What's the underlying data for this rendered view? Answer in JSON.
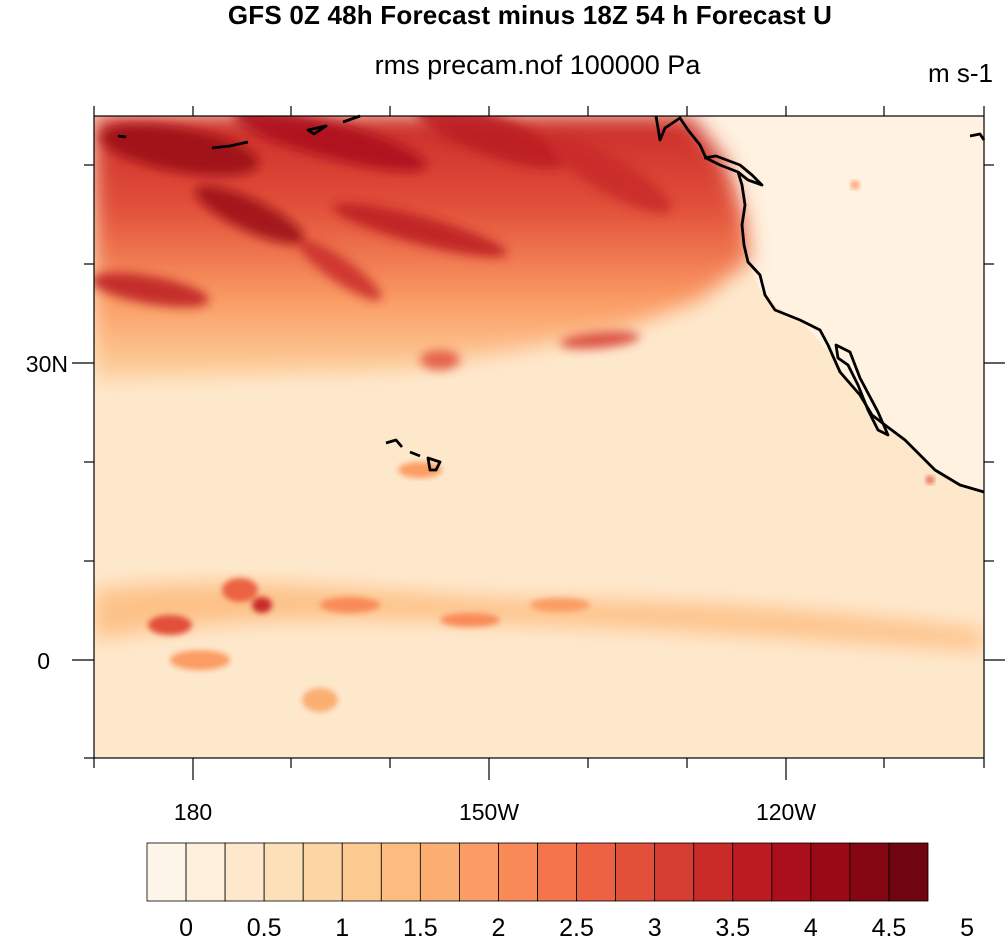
{
  "title": "GFS 0Z 48h Forecast minus 18Z 54 h Forecast U",
  "subtitle": "rms precam.nof 100000 Pa",
  "units": "m s-1",
  "lat_ticks": [
    "30N",
    "0"
  ],
  "lon_ticks": [
    "180",
    "150W",
    "120W"
  ],
  "colorbar": {
    "labels": [
      "0",
      "0.5",
      "1",
      "1.5",
      "2",
      "2.5",
      "3",
      "3.5",
      "4",
      "4.5",
      "5"
    ],
    "colors": [
      "#fff6ea",
      "#fef0dc",
      "#fee8cc",
      "#fee0b8",
      "#fdd5a2",
      "#fdca90",
      "#fdbd80",
      "#fcae72",
      "#fb9c64",
      "#f98a58",
      "#f4754c",
      "#ec6243",
      "#e2503a",
      "#d63e32",
      "#c92b29",
      "#bb1b21",
      "#ab0f1b",
      "#990916",
      "#830612",
      "#6f0510"
    ]
  },
  "chart_data": {
    "type": "heatmap",
    "title": "GFS 0Z 48h Forecast minus 18Z 54 h Forecast U",
    "subtitle": "rms precam.nof 100000 Pa",
    "units": "m s-1",
    "region": {
      "lon_range": [
        "170E",
        "100W"
      ],
      "lat_range": [
        "10S",
        "55N"
      ]
    },
    "value_range": [
      0,
      5
    ],
    "features": [
      {
        "region": "North Pacific north of 30N",
        "level": "high (3.5-5)"
      },
      {
        "region": "ITCZ near 5N",
        "level": "moderate (1.5-3)"
      },
      {
        "region": "subtropics and North America",
        "level": "low (0-1)"
      }
    ]
  }
}
